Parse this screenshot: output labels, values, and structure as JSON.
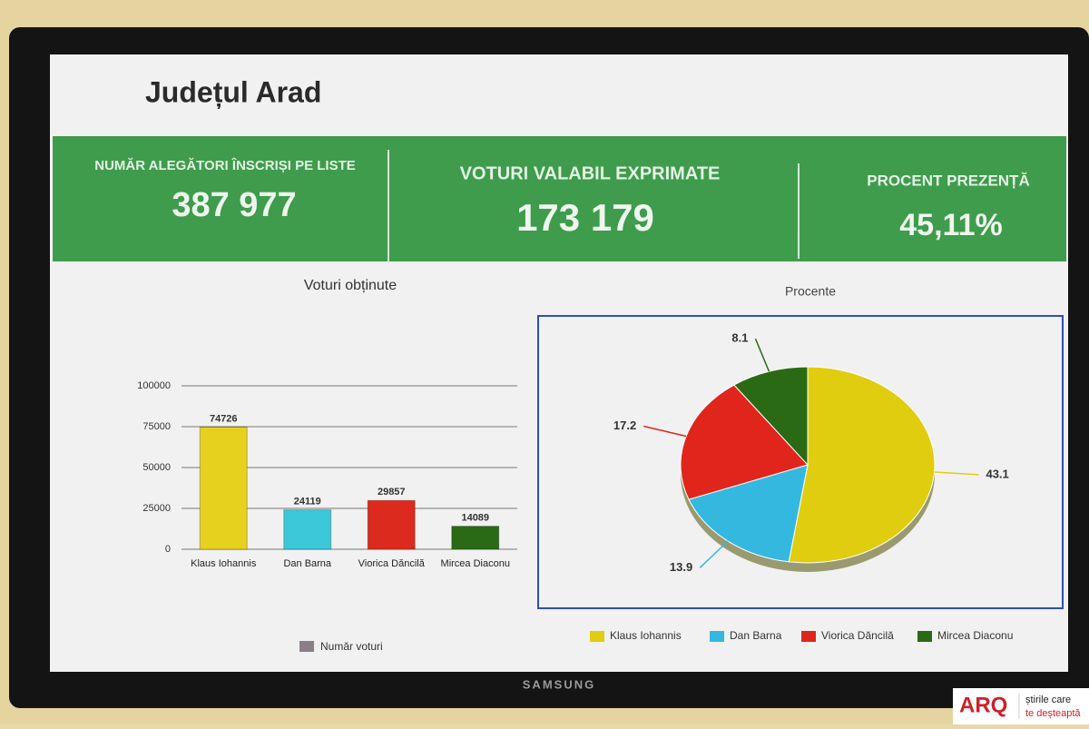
{
  "header": {
    "title": "Județul Arad"
  },
  "stats": [
    {
      "label": "NUMĂR ALEGĂTORI ÎNSCRIȘI PE LISTE",
      "value": "387 977"
    },
    {
      "label": "VOTURI VALABIL  EXPRIMATE",
      "value": "173 179"
    },
    {
      "label": "PROCENT PREZENȚĂ",
      "value": "45,11%"
    }
  ],
  "chart_data": [
    {
      "type": "bar",
      "title": "Voturi obținute",
      "categories": [
        "Klaus Iohannis",
        "Dan Barna",
        "Viorica Dăncilă",
        "Mircea Diaconu"
      ],
      "series": [
        {
          "name": "Număr voturi",
          "color": "#8a7f86",
          "values": [
            74726,
            24119,
            29857,
            14089
          ]
        }
      ],
      "colors": [
        "#e6d21e",
        "#3cc8d8",
        "#dc2a1e",
        "#2a6a14"
      ],
      "ylim": [
        0,
        100000
      ],
      "yticks": [
        0,
        25000,
        50000,
        75000,
        100000
      ],
      "grid": true
    },
    {
      "type": "pie",
      "title": "Procente",
      "categories": [
        "Klaus Iohannis",
        "Dan Barna",
        "Viorica Dăncilă",
        "Mircea Diaconu"
      ],
      "values": [
        43.1,
        13.9,
        17.2,
        8.1
      ],
      "colors": [
        "#e0cd10",
        "#35b8e0",
        "#e0261c",
        "#2b6a14"
      ]
    }
  ],
  "brand": "SAMSUNG",
  "logo": {
    "name": "ARQ",
    "tagline": [
      "știrile care",
      "te deșteaptă"
    ]
  }
}
